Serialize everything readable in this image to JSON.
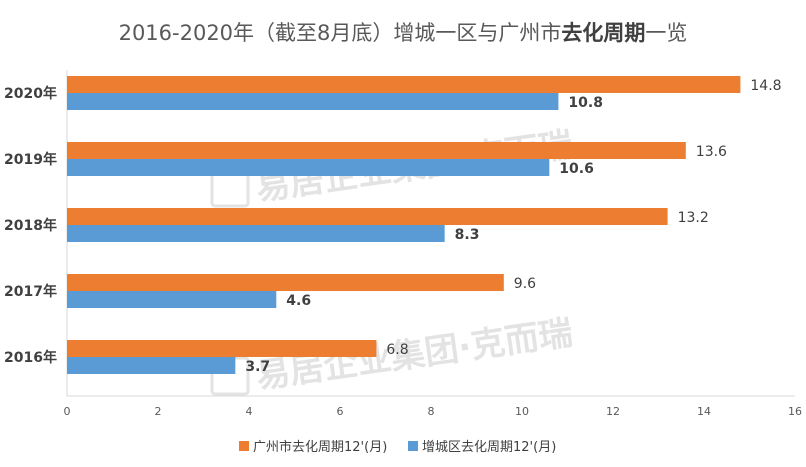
{
  "chart_data": {
    "type": "bar",
    "orientation": "horizontal",
    "title": "2016-2020年（截至8月底）增城一区与广州市去化周期一览",
    "title_parts": [
      "2016-2020年（截至8月底）增城一区与广州市",
      "去化周期",
      "一览"
    ],
    "categories": [
      "2020年",
      "2019年",
      "2018年",
      "2017年",
      "2016年"
    ],
    "series": [
      {
        "name": "广州市去化周期12'(月)",
        "color": "#ed7d31",
        "values": [
          14.8,
          13.6,
          13.2,
          9.6,
          6.8
        ],
        "labels": [
          "14.8",
          "13.6",
          "13.2",
          "9.6",
          "6.8"
        ]
      },
      {
        "name": "增城区去化周期12'(月)",
        "color": "#5b9bd5",
        "values": [
          10.8,
          10.6,
          8.3,
          4.6,
          3.7
        ],
        "labels": [
          "10.8",
          "10.6",
          "8.3",
          "4.6",
          "3.7"
        ]
      }
    ],
    "xlim": [
      0,
      16
    ],
    "xticks": [
      "0",
      "2",
      "4",
      "6",
      "8",
      "10",
      "12",
      "14",
      "16"
    ],
    "xticks_values": [
      0,
      2,
      4,
      6,
      8,
      10,
      12,
      14,
      16
    ],
    "legend_position": "bottom",
    "grid": false
  },
  "watermark": {
    "text1": "易居企业集团·克而瑞",
    "text2": "易居企业集团·克而瑞"
  }
}
